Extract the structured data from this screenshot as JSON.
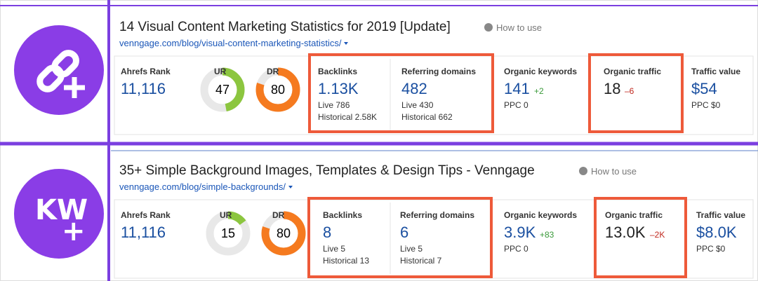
{
  "rows": [
    {
      "icon": {
        "kind": "link"
      },
      "title": "14 Visual Content Marketing Statistics for 2019 [Update]",
      "help": "How to use",
      "url": "venngage.com/blog/visual-content-marketing-statistics/",
      "ahrefs_rank": {
        "label": "Ahrefs Rank",
        "value": "11,116"
      },
      "ur": {
        "label": "UR",
        "value": 47
      },
      "dr": {
        "label": "DR",
        "value": 80
      },
      "backlinks": {
        "label": "Backlinks",
        "value": "1.13K",
        "live": "Live 786",
        "historical": "Historical 2.58K"
      },
      "referring_domains": {
        "label": "Referring domains",
        "value": "482",
        "live": "Live 430",
        "historical": "Historical 662"
      },
      "organic_keywords": {
        "label": "Organic keywords",
        "value": "141",
        "change": "+2",
        "ppc": "PPC 0"
      },
      "organic_traffic": {
        "label": "Organic traffic",
        "value": "18",
        "change": "–6"
      },
      "traffic_value": {
        "label": "Traffic value",
        "value": "$54",
        "ppc": "PPC $0"
      }
    },
    {
      "icon": {
        "kind": "keyword",
        "text": "KW",
        "plus": "+"
      },
      "title": "35+ Simple Background Images, Templates & Design Tips - Venngage",
      "help": "How to use",
      "url": "venngage.com/blog/simple-backgrounds/",
      "ahrefs_rank": {
        "label": "Ahrefs Rank",
        "value": "11,116"
      },
      "ur": {
        "label": "UR",
        "value": 15
      },
      "dr": {
        "label": "DR",
        "value": 80
      },
      "backlinks": {
        "label": "Backlinks",
        "value": "8",
        "live": "Live 5",
        "historical": "Historical 13"
      },
      "referring_domains": {
        "label": "Referring domains",
        "value": "6",
        "live": "Live 5",
        "historical": "Historical 7"
      },
      "organic_keywords": {
        "label": "Organic keywords",
        "value": "3.9K",
        "change": "+83",
        "ppc": "PPC 0"
      },
      "organic_traffic": {
        "label": "Organic traffic",
        "value": "13.0K",
        "change": "–2K"
      },
      "traffic_value": {
        "label": "Traffic value",
        "value": "$8.0K",
        "ppc": "PPC $0"
      }
    }
  ]
}
